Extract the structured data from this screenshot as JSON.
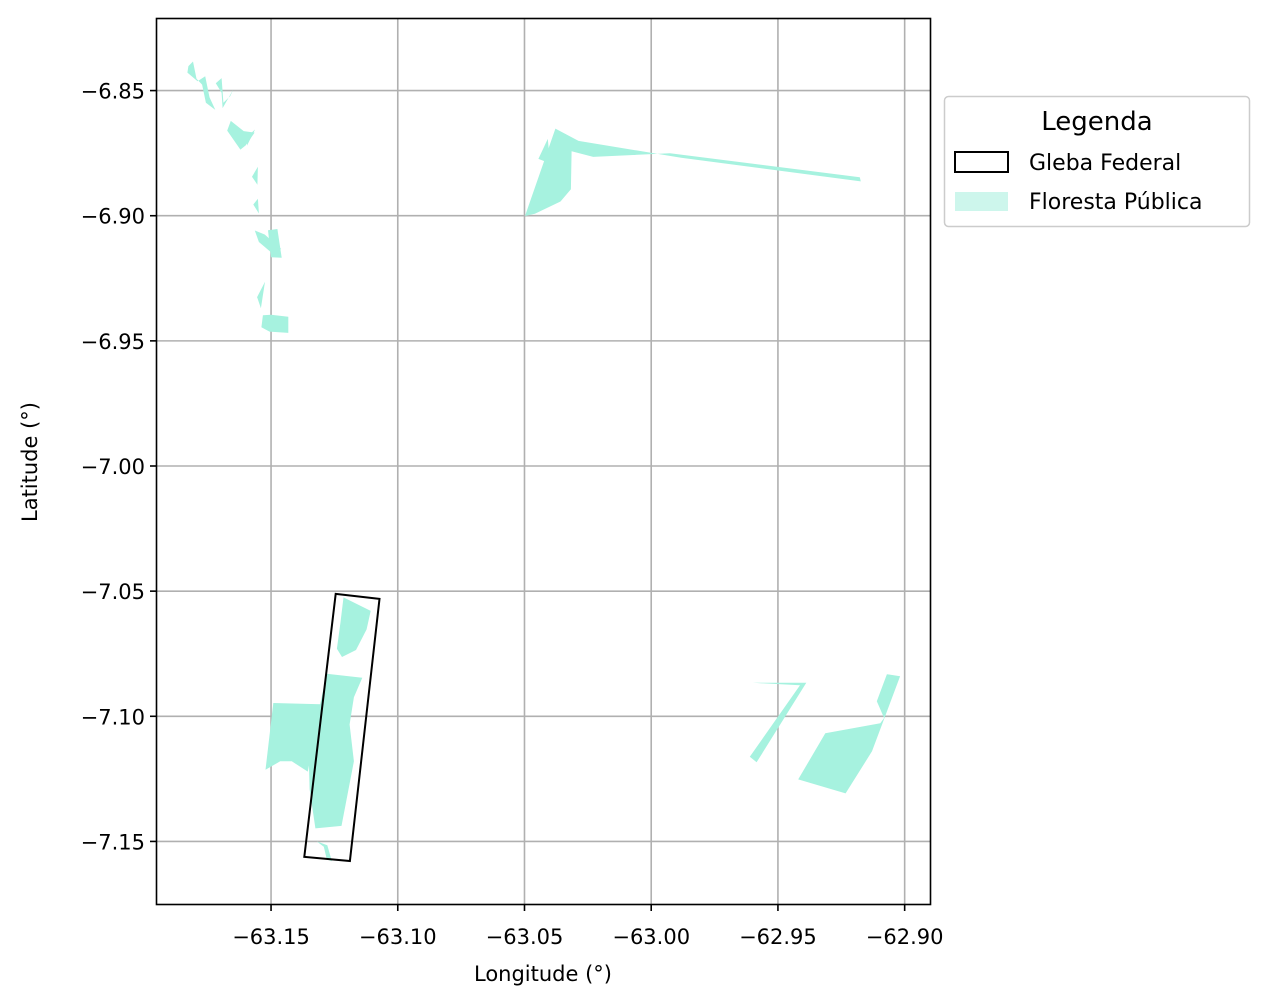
{
  "chart_data": {
    "type": "map",
    "xlabel": "Longitude (°)",
    "ylabel": "Latitude (°)",
    "xlim": [
      -63.195,
      -62.89
    ],
    "ylim": [
      -7.175,
      -6.821
    ],
    "grid": true,
    "xticks": [
      -63.15,
      -63.1,
      -63.05,
      -63.0,
      -62.95,
      -62.9
    ],
    "xtick_labels": [
      "−63.15",
      "−63.10",
      "−63.05",
      "−63.00",
      "−62.95",
      "−62.90"
    ],
    "yticks": [
      -6.85,
      -6.9,
      -6.95,
      -7.0,
      -7.05,
      -7.1,
      -7.15
    ],
    "ytick_labels": [
      "−6.85",
      "−6.90",
      "−6.95",
      "−7.00",
      "−7.05",
      "−7.10",
      "−7.15"
    ],
    "legend": {
      "title": "Legenda",
      "placement": "outside right, top",
      "items": [
        {
          "label": "Gleba Federal",
          "style": "outline",
          "color": "#000000"
        },
        {
          "label": "Floresta Pública",
          "style": "fill",
          "color": "#a6f2df"
        }
      ]
    },
    "layers": [
      {
        "name": "Gleba Federal",
        "color": "#000000",
        "polygons": [
          [
            [
              -63.1245,
              -7.0511
            ],
            [
              -63.1072,
              -7.0531
            ],
            [
              -63.1189,
              -7.1578
            ],
            [
              -63.1369,
              -7.1562
            ]
          ]
        ]
      },
      {
        "name": "Floresta Pública",
        "color": "#a6f2df",
        "polygons": [
          [
            [
              -63.1826,
              -6.8402
            ],
            [
              -63.1808,
              -6.8384
            ],
            [
              -63.1794,
              -6.8453
            ],
            [
              -63.1772,
              -6.8476
            ],
            [
              -63.1757,
              -6.8549
            ],
            [
              -63.172,
              -6.8577
            ],
            [
              -63.1743,
              -6.8527
            ],
            [
              -63.176,
              -6.8443
            ],
            [
              -63.179,
              -6.8463
            ],
            [
              -63.183,
              -6.8428
            ]
          ],
          [
            [
              -63.1718,
              -6.8471
            ],
            [
              -63.1695,
              -6.845
            ],
            [
              -63.1688,
              -6.8549
            ],
            [
              -63.1661,
              -6.8522
            ],
            [
              -63.1648,
              -6.8494
            ],
            [
              -63.1691,
              -6.857
            ],
            [
              -63.1695,
              -6.8509
            ]
          ],
          [
            [
              -63.1659,
              -6.8621
            ],
            [
              -63.1608,
              -6.8662
            ],
            [
              -63.1565,
              -6.8668
            ],
            [
              -63.16,
              -6.8719
            ],
            [
              -63.1621,
              -6.8736
            ],
            [
              -63.1673,
              -6.866
            ]
          ],
          [
            [
              -63.1594,
              -6.8685
            ],
            [
              -63.1563,
              -6.8655
            ],
            [
              -63.1595,
              -6.872
            ]
          ],
          [
            [
              -63.1552,
              -6.8804
            ],
            [
              -63.1575,
              -6.8844
            ],
            [
              -63.1554,
              -6.8876
            ]
          ],
          [
            [
              -63.1552,
              -6.8932
            ],
            [
              -63.157,
              -6.8955
            ],
            [
              -63.1548,
              -6.8991
            ]
          ],
          [
            [
              -63.1564,
              -6.9059
            ],
            [
              -63.1548,
              -6.9105
            ],
            [
              -63.1498,
              -6.9148
            ],
            [
              -63.146,
              -6.9133
            ],
            [
              -63.1525,
              -6.9075
            ]
          ],
          [
            [
              -63.1512,
              -6.9058
            ],
            [
              -63.1475,
              -6.9053
            ],
            [
              -63.1458,
              -6.9168
            ],
            [
              -63.15,
              -6.9166
            ]
          ],
          [
            [
              -63.1555,
              -6.9325
            ],
            [
              -63.1524,
              -6.9264
            ],
            [
              -63.154,
              -6.937
            ]
          ],
          [
            [
              -63.1532,
              -6.9398
            ],
            [
              -63.15,
              -6.9396
            ],
            [
              -63.1432,
              -6.9404
            ],
            [
              -63.1432,
              -6.9468
            ],
            [
              -63.1506,
              -6.9463
            ],
            [
              -63.1538,
              -6.9446
            ]
          ],
          [
            [
              -63.1491,
              -7.0947
            ],
            [
              -63.1304,
              -7.0952
            ],
            [
              -63.1355,
              -7.1221
            ],
            [
              -63.1418,
              -7.118
            ],
            [
              -63.1464,
              -7.118
            ],
            [
              -63.1522,
              -7.1214
            ]
          ],
          [
            [
              -63.1214,
              -7.0525
            ],
            [
              -63.1107,
              -7.0579
            ],
            [
              -63.1123,
              -7.0653
            ],
            [
              -63.1165,
              -7.0735
            ],
            [
              -63.122,
              -7.0763
            ],
            [
              -63.124,
              -7.073
            ],
            [
              -63.1226,
              -7.0624
            ]
          ],
          [
            [
              -63.1281,
              -7.083
            ],
            [
              -63.114,
              -7.0846
            ],
            [
              -63.1173,
              -7.0924
            ],
            [
              -63.119,
              -7.1033
            ],
            [
              -63.1173,
              -7.118
            ],
            [
              -63.1222,
              -7.1438
            ],
            [
              -63.1325,
              -7.1448
            ],
            [
              -63.1348,
              -7.1291
            ],
            [
              -63.1354,
              -7.1067
            ],
            [
              -63.1312,
              -7.098
            ]
          ],
          [
            [
              -63.132,
              -7.15
            ],
            [
              -63.1292,
              -7.1521
            ],
            [
              -63.128,
              -7.1571
            ],
            [
              -63.126,
              -7.1579
            ],
            [
              -63.1278,
              -7.1515
            ]
          ],
          [
            [
              -63.0498,
              -6.9001
            ],
            [
              -63.0378,
              -6.8652
            ],
            [
              -63.0287,
              -6.8701
            ],
            [
              -62.9882,
              -6.8768
            ],
            [
              -62.9173,
              -6.8863
            ],
            [
              -62.9177,
              -6.8846
            ],
            [
              -62.9926,
              -6.875
            ],
            [
              -63.0229,
              -6.8765
            ],
            [
              -63.0314,
              -6.8742
            ],
            [
              -63.0317,
              -6.8894
            ],
            [
              -63.0358,
              -6.8943
            ],
            [
              -63.0459,
              -6.8992
            ]
          ],
          [
            [
              -63.0408,
              -6.8693
            ],
            [
              -63.0399,
              -6.8791
            ],
            [
              -63.0445,
              -6.8773
            ]
          ],
          [
            [
              -62.9599,
              -7.0866
            ],
            [
              -62.9388,
              -7.0866
            ],
            [
              -62.9584,
              -7.1184
            ],
            [
              -62.9611,
              -7.1162
            ],
            [
              -62.9413,
              -7.0876
            ]
          ],
          [
            [
              -62.907,
              -7.0832
            ],
            [
              -62.911,
              -7.094
            ],
            [
              -62.9081,
              -7.1007
            ],
            [
              -62.9096,
              -7.1028
            ],
            [
              -62.9313,
              -7.1068
            ],
            [
              -62.942,
              -7.1252
            ],
            [
              -62.928,
              -7.1294
            ],
            [
              -62.9233,
              -7.1308
            ],
            [
              -62.9129,
              -7.114
            ],
            [
              -62.9018,
              -7.084
            ]
          ]
        ]
      }
    ]
  }
}
